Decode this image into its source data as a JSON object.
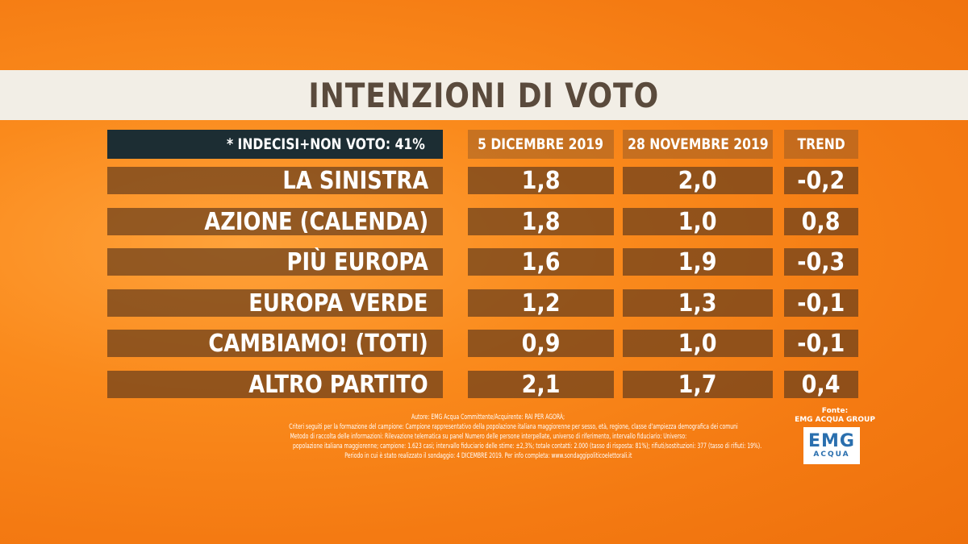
{
  "title": "INTENZIONI DI VOTO",
  "note": "* INDECISI+NON VOTO: 41%",
  "columns": [
    "5 DICEMBRE 2019",
    "28 NOVEMBRE 2019",
    "TREND"
  ],
  "rows": [
    {
      "party": "LA SINISTRA",
      "dec5": "1,8",
      "nov28": "2,0",
      "trend": "-0,2"
    },
    {
      "party": "AZIONE (CALENDA)",
      "dec5": "1,8",
      "nov28": "1,0",
      "trend": "0,8"
    },
    {
      "party": "PIÙ EUROPA",
      "dec5": "1,6",
      "nov28": "1,9",
      "trend": "-0,3"
    },
    {
      "party": "EUROPA VERDE",
      "dec5": "1,2",
      "nov28": "1,3",
      "trend": "-0,1"
    },
    {
      "party": "CAMBIAMO! (TOTI)",
      "dec5": "0,9",
      "nov28": "1,0",
      "trend": "-0,1"
    },
    {
      "party": "ALTRO PARTITO",
      "dec5": "2,1",
      "nov28": "1,7",
      "trend": "0,4"
    }
  ],
  "footer": {
    "lines": [
      "Autore: EMG Acqua Committente/Acquirente: RAI PER AGORÀ;",
      "Criteri seguiti per la formazione del campione: Campione rappresentativo della popolazione italiana maggiorenne per sesso, età, regione, classe d'ampiezza demografica dei comuni",
      "Metodo di raccolta delle informazioni: Rilevazione telematica su panel Numero delle persone interpellate, universo di riferimento, intervallo fiduciario: Universo:",
      "popolazione italiana maggiorenne; campione: 1.623 casi; intervallo fiduciario delle stime: ±2,3%; totale contatti: 2.000 (tasso di risposta: 81%); rifiuti/sostituzioni: 377 (tasso di rifiuti: 19%).",
      "Periodo in cui è stato realizzato il sondaggio: 4 DICEMBRE 2019. Per info completa: www.sondaggipoliticoelettorali.it"
    ]
  },
  "source": {
    "label": "Fonte:",
    "name": "EMG ACQUA GROUP",
    "logo_top": "EMG",
    "logo_bottom": "ACQUA"
  }
}
